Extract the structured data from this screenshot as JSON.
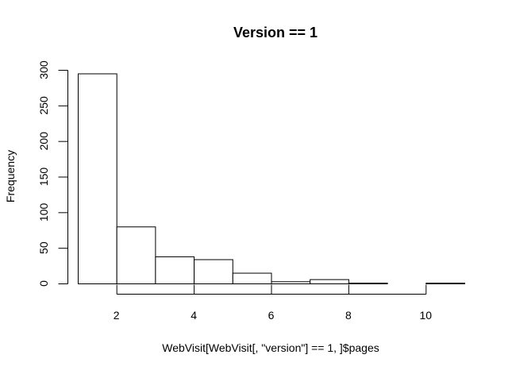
{
  "chart_data": {
    "type": "bar",
    "title": "Version == 1",
    "xlabel": "WebVisit[WebVisit[, \"version\"] == 1, ]$pages",
    "ylabel": "Frequency",
    "bins": [
      {
        "start": 1,
        "end": 2,
        "value": 295
      },
      {
        "start": 2,
        "end": 3,
        "value": 80
      },
      {
        "start": 3,
        "end": 4,
        "value": 38
      },
      {
        "start": 4,
        "end": 5,
        "value": 34
      },
      {
        "start": 5,
        "end": 6,
        "value": 15
      },
      {
        "start": 6,
        "end": 7,
        "value": 3
      },
      {
        "start": 7,
        "end": 8,
        "value": 6
      },
      {
        "start": 8,
        "end": 9,
        "value": 1
      },
      {
        "start": 9,
        "end": 10,
        "value": 0
      },
      {
        "start": 10,
        "end": 11,
        "value": 1
      }
    ],
    "xticks": [
      2,
      4,
      6,
      8,
      10
    ],
    "yticks": [
      0,
      50,
      100,
      150,
      200,
      250,
      300
    ],
    "xlim": [
      1,
      11
    ],
    "ylim": [
      0,
      300
    ],
    "grid": false,
    "legend": "none"
  }
}
